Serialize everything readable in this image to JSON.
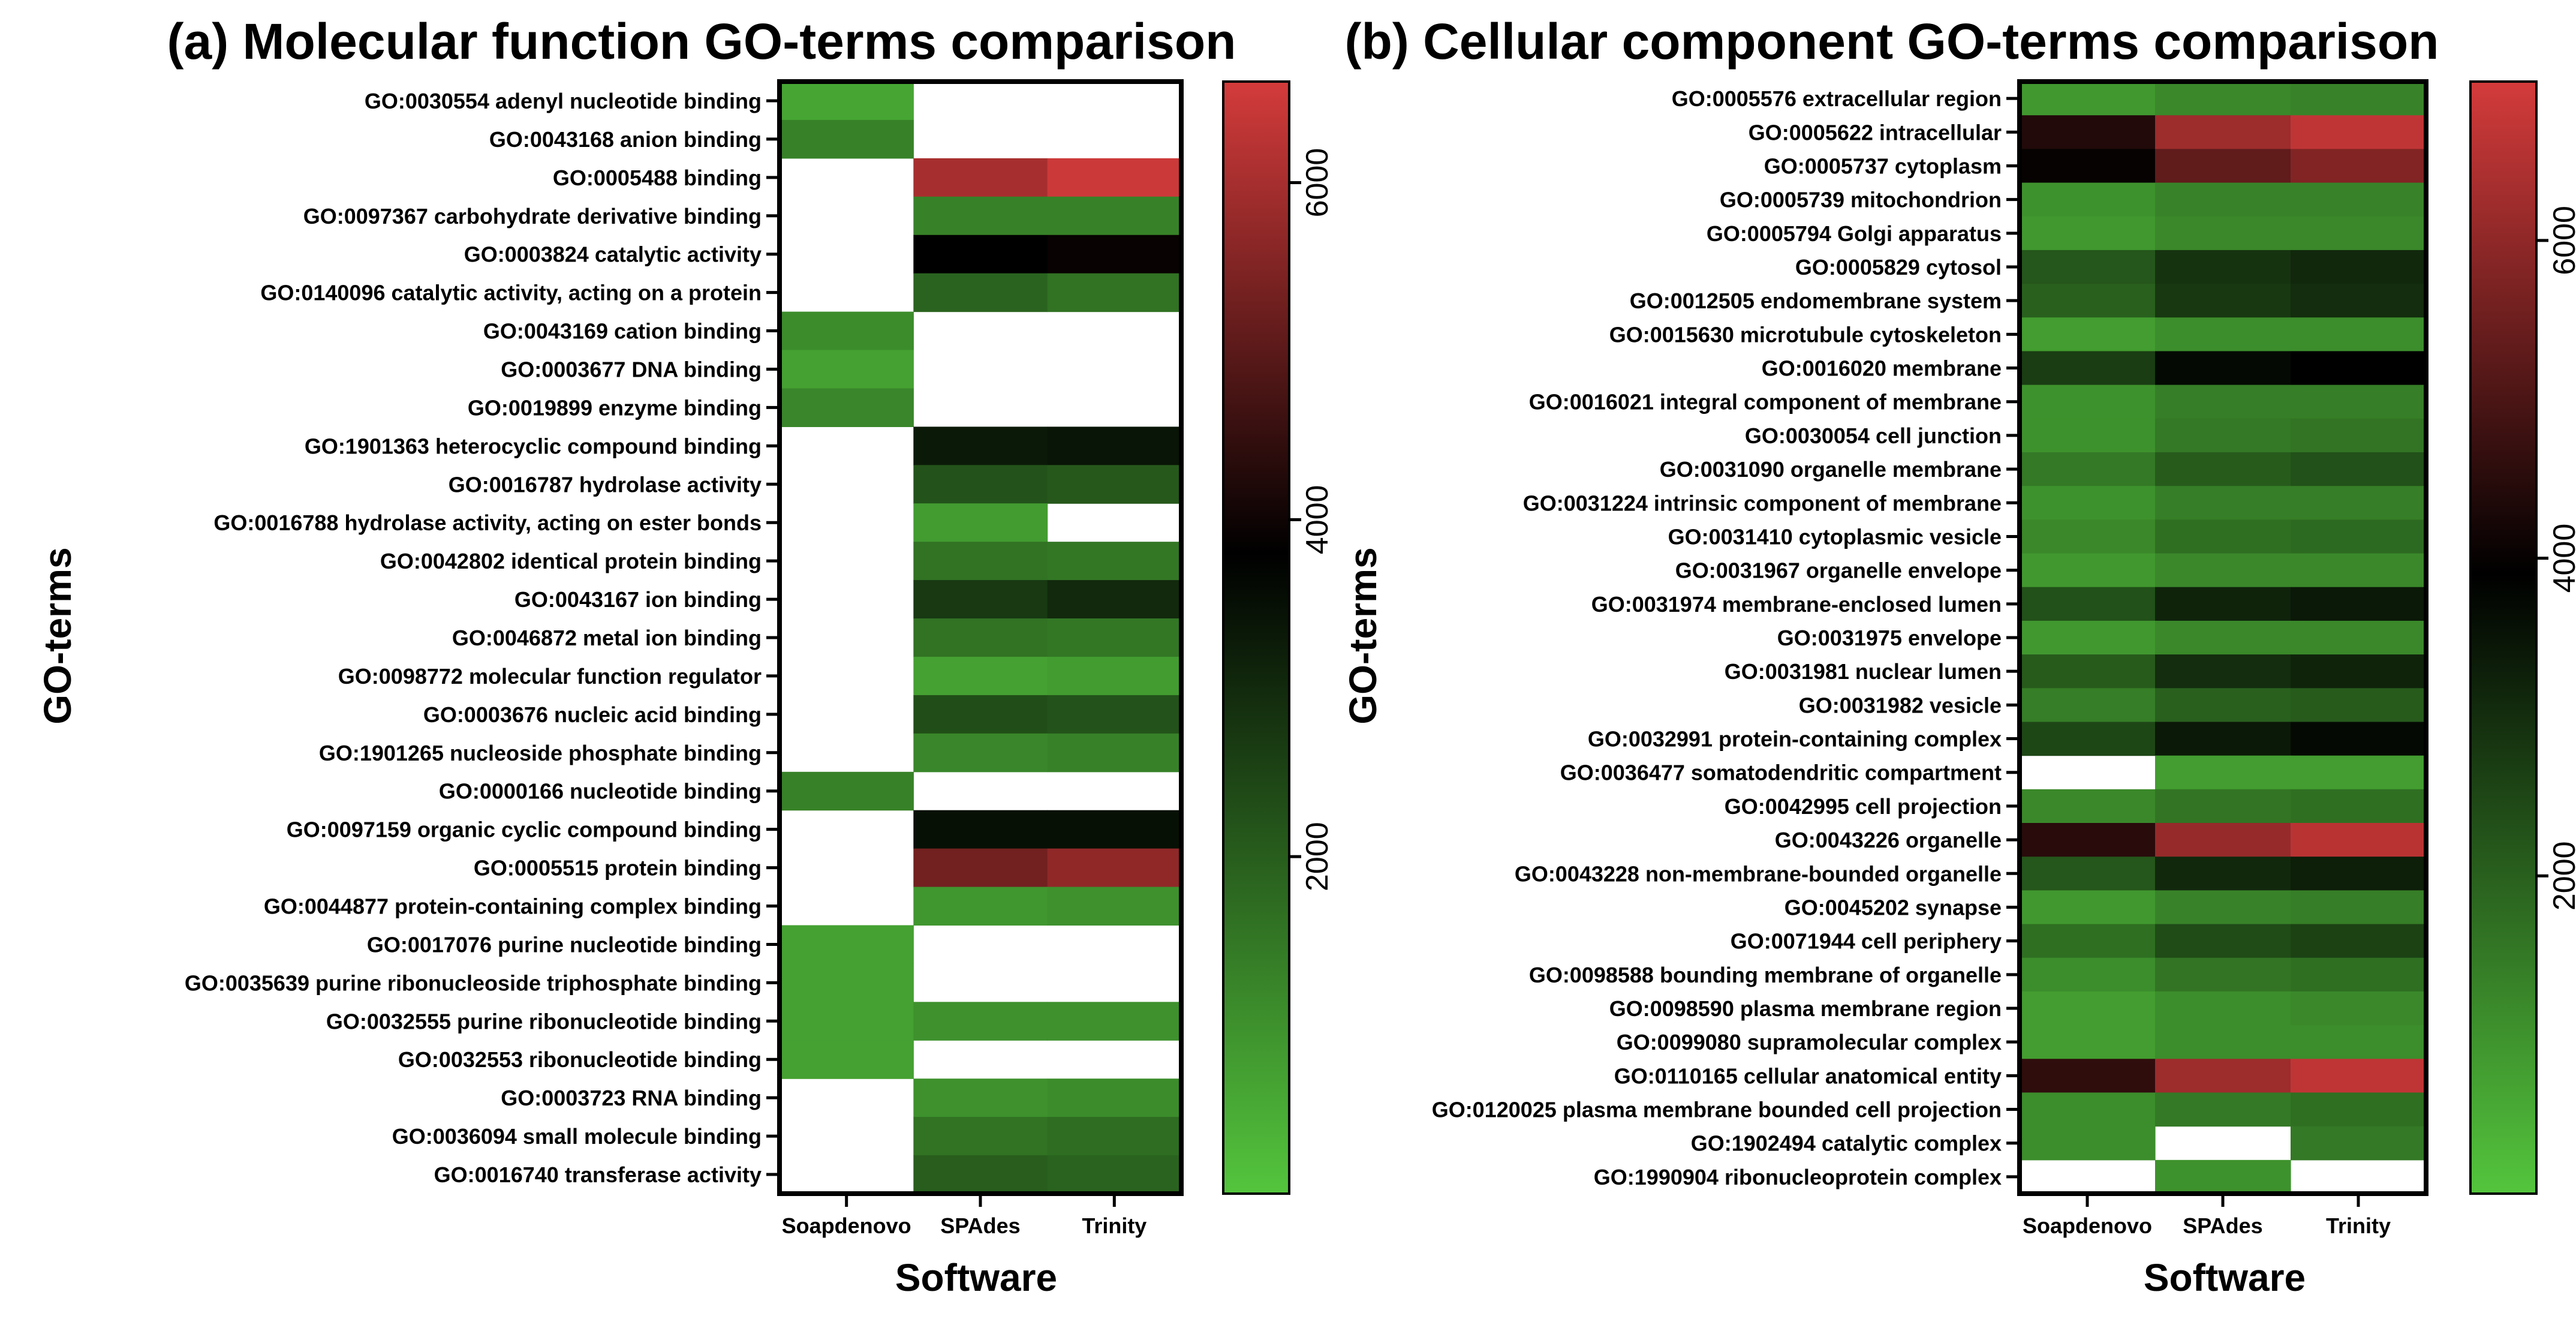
{
  "chart_data": [
    {
      "type": "heatmap",
      "title": "(a) Molecular function GO-terms comparison",
      "xlabel": "Software",
      "ylabel": "GO-terms",
      "columns": [
        "Soapdenovo",
        "SPAdes",
        "Trinity"
      ],
      "colorbar": {
        "ticks": [
          "2000",
          "4000",
          "6000"
        ],
        "range": [
          0,
          6600
        ],
        "low_color": "#54c53d",
        "mid_color": "#000000",
        "high_color": "#d43b3b",
        "mid_value": 3800
      },
      "rows": [
        {
          "label": "GO:0030554 adenyl nucleotide binding",
          "values": [
            600,
            null,
            null
          ]
        },
        {
          "label": "GO:0043168 anion binding",
          "values": [
            1300,
            null,
            null
          ]
        },
        {
          "label": "GO:0005488 binding",
          "values": [
            null,
            6000,
            6500
          ]
        },
        {
          "label": "GO:0097367 carbohydrate derivative binding",
          "values": [
            null,
            1300,
            1300
          ]
        },
        {
          "label": "GO:0003824 catalytic activity",
          "values": [
            null,
            3800,
            3900
          ]
        },
        {
          "label": "GO:0140096 catalytic activity, acting on a protein",
          "values": [
            null,
            1900,
            1600
          ]
        },
        {
          "label": "GO:0043169 cation binding",
          "values": [
            1100,
            null,
            null
          ]
        },
        {
          "label": "GO:0003677 DNA binding",
          "values": [
            700,
            null,
            null
          ]
        },
        {
          "label": "GO:0019899 enzyme binding",
          "values": [
            1200,
            null,
            null
          ]
        },
        {
          "label": "GO:1901363 heterocyclic compound binding",
          "values": [
            null,
            3300,
            3400
          ]
        },
        {
          "label": "GO:0016787 hydrolase activity",
          "values": [
            null,
            2200,
            2100
          ]
        },
        {
          "label": "GO:0016788 hydrolase activity, acting on ester bonds",
          "values": [
            null,
            800,
            null
          ]
        },
        {
          "label": "GO:0042802 identical protein binding",
          "values": [
            null,
            1600,
            1500
          ]
        },
        {
          "label": "GO:0043167 ion binding",
          "values": [
            null,
            2700,
            3000
          ]
        },
        {
          "label": "GO:0046872 metal ion binding",
          "values": [
            null,
            1600,
            1500
          ]
        },
        {
          "label": "GO:0098772 molecular function regulator",
          "values": [
            null,
            700,
            800
          ]
        },
        {
          "label": "GO:0003676 nucleic acid binding",
          "values": [
            null,
            2300,
            2200
          ]
        },
        {
          "label": "GO:1901265 nucleoside phosphate binding",
          "values": [
            null,
            1200,
            1300
          ]
        },
        {
          "label": "GO:0000166 nucleotide binding",
          "values": [
            1300,
            null,
            null
          ]
        },
        {
          "label": "GO:0097159 organic cyclic compound binding",
          "values": [
            null,
            3500,
            3500
          ]
        },
        {
          "label": "GO:0005515 protein binding",
          "values": [
            null,
            5300,
            5700
          ]
        },
        {
          "label": "GO:0044877 protein-containing complex binding",
          "values": [
            null,
            900,
            1000
          ]
        },
        {
          "label": "GO:0017076 purine nucleotide binding",
          "values": [
            700,
            null,
            null
          ]
        },
        {
          "label": "GO:0035639 purine ribonucleoside triphosphate binding",
          "values": [
            700,
            null,
            null
          ]
        },
        {
          "label": "GO:0032555 purine ribonucleotide binding",
          "values": [
            700,
            1000,
            1000
          ]
        },
        {
          "label": "GO:0032553 ribonucleotide binding",
          "values": [
            700,
            null,
            null
          ]
        },
        {
          "label": "GO:0003723 RNA binding",
          "values": [
            null,
            1000,
            1100
          ]
        },
        {
          "label": "GO:0036094 small molecule binding",
          "values": [
            null,
            1600,
            1700
          ]
        },
        {
          "label": "GO:0016740 transferase activity",
          "values": [
            null,
            2000,
            1900
          ]
        }
      ]
    },
    {
      "type": "heatmap",
      "title": "(b) Cellular component GO-terms comparison",
      "xlabel": "Software",
      "ylabel": "GO-terms",
      "columns": [
        "Soapdenovo",
        "SPAdes",
        "Trinity"
      ],
      "colorbar": {
        "ticks": [
          "2000",
          "4000",
          "6000"
        ],
        "range": [
          0,
          7000
        ],
        "low_color": "#54c53d",
        "mid_color": "#000000",
        "high_color": "#d43b3b",
        "mid_value": 3900
      },
      "rows": [
        {
          "label": "GO:0005576 extracellular region",
          "values": [
            900,
            1200,
            1300
          ]
        },
        {
          "label": "GO:0005622 intracellular",
          "values": [
            4400,
            6200,
            6700
          ]
        },
        {
          "label": "GO:0005737 cytoplasm",
          "values": [
            4000,
            5300,
            5800
          ]
        },
        {
          "label": "GO:0005739 mitochondrion",
          "values": [
            1000,
            1300,
            1300
          ]
        },
        {
          "label": "GO:0005794 Golgi apparatus",
          "values": [
            900,
            1200,
            1200
          ]
        },
        {
          "label": "GO:0005829 cytosol",
          "values": [
            2200,
            2900,
            3100
          ]
        },
        {
          "label": "GO:0012505 endomembrane system",
          "values": [
            2000,
            2800,
            3000
          ]
        },
        {
          "label": "GO:0015630 microtubule cytoskeleton",
          "values": [
            800,
            1100,
            1100
          ]
        },
        {
          "label": "GO:0016020 membrane",
          "values": [
            2700,
            3700,
            3900
          ]
        },
        {
          "label": "GO:0016021 integral component of membrane",
          "values": [
            1000,
            1400,
            1400
          ]
        },
        {
          "label": "GO:0030054 cell junction",
          "values": [
            1000,
            1500,
            1600
          ]
        },
        {
          "label": "GO:0031090 organelle membrane",
          "values": [
            1500,
            2100,
            2300
          ]
        },
        {
          "label": "GO:0031224 intrinsic component of membrane",
          "values": [
            1000,
            1400,
            1400
          ]
        },
        {
          "label": "GO:0031410 cytoplasmic vesicle",
          "values": [
            1200,
            1700,
            1800
          ]
        },
        {
          "label": "GO:0031967 organelle envelope",
          "values": [
            900,
            1200,
            1200
          ]
        },
        {
          "label": "GO:0031974 membrane-enclosed lumen",
          "values": [
            2300,
            3200,
            3400
          ]
        },
        {
          "label": "GO:0031975 envelope",
          "values": [
            900,
            1200,
            1200
          ]
        },
        {
          "label": "GO:0031981 nuclear lumen",
          "values": [
            2100,
            3000,
            3200
          ]
        },
        {
          "label": "GO:0031982 vesicle",
          "values": [
            1400,
            2000,
            2100
          ]
        },
        {
          "label": "GO:0032991 protein-containing complex",
          "values": [
            2500,
            3400,
            3700
          ]
        },
        {
          "label": "GO:0036477 somatodendritic compartment",
          "values": [
            null,
            800,
            800
          ]
        },
        {
          "label": "GO:0042995 cell projection",
          "values": [
            1200,
            1600,
            1700
          ]
        },
        {
          "label": "GO:0043226 organelle",
          "values": [
            4500,
            6100,
            6600
          ]
        },
        {
          "label": "GO:0043228 non-membrane-bounded organelle",
          "values": [
            2200,
            3100,
            3300
          ]
        },
        {
          "label": "GO:0045202 synapse",
          "values": [
            900,
            1300,
            1400
          ]
        },
        {
          "label": "GO:0071944 cell periphery",
          "values": [
            1700,
            2400,
            2600
          ]
        },
        {
          "label": "GO:0098588 bounding membrane of organelle",
          "values": [
            1100,
            1600,
            1700
          ]
        },
        {
          "label": "GO:0098590 plasma membrane region",
          "values": [
            800,
            1100,
            1200
          ]
        },
        {
          "label": "GO:0099080 supramolecular complex",
          "values": [
            800,
            1100,
            1100
          ]
        },
        {
          "label": "GO:0110165 cellular anatomical entity",
          "values": [
            4600,
            6200,
            6700
          ]
        },
        {
          "label": "GO:0120025 plasma membrane bounded cell projection",
          "values": [
            1100,
            1500,
            1700
          ]
        },
        {
          "label": "GO:1902494 catalytic complex",
          "values": [
            1100,
            null,
            1500
          ]
        },
        {
          "label": "GO:1990904 ribonucleoprotein complex",
          "values": [
            null,
            1000,
            null
          ]
        }
      ]
    }
  ]
}
